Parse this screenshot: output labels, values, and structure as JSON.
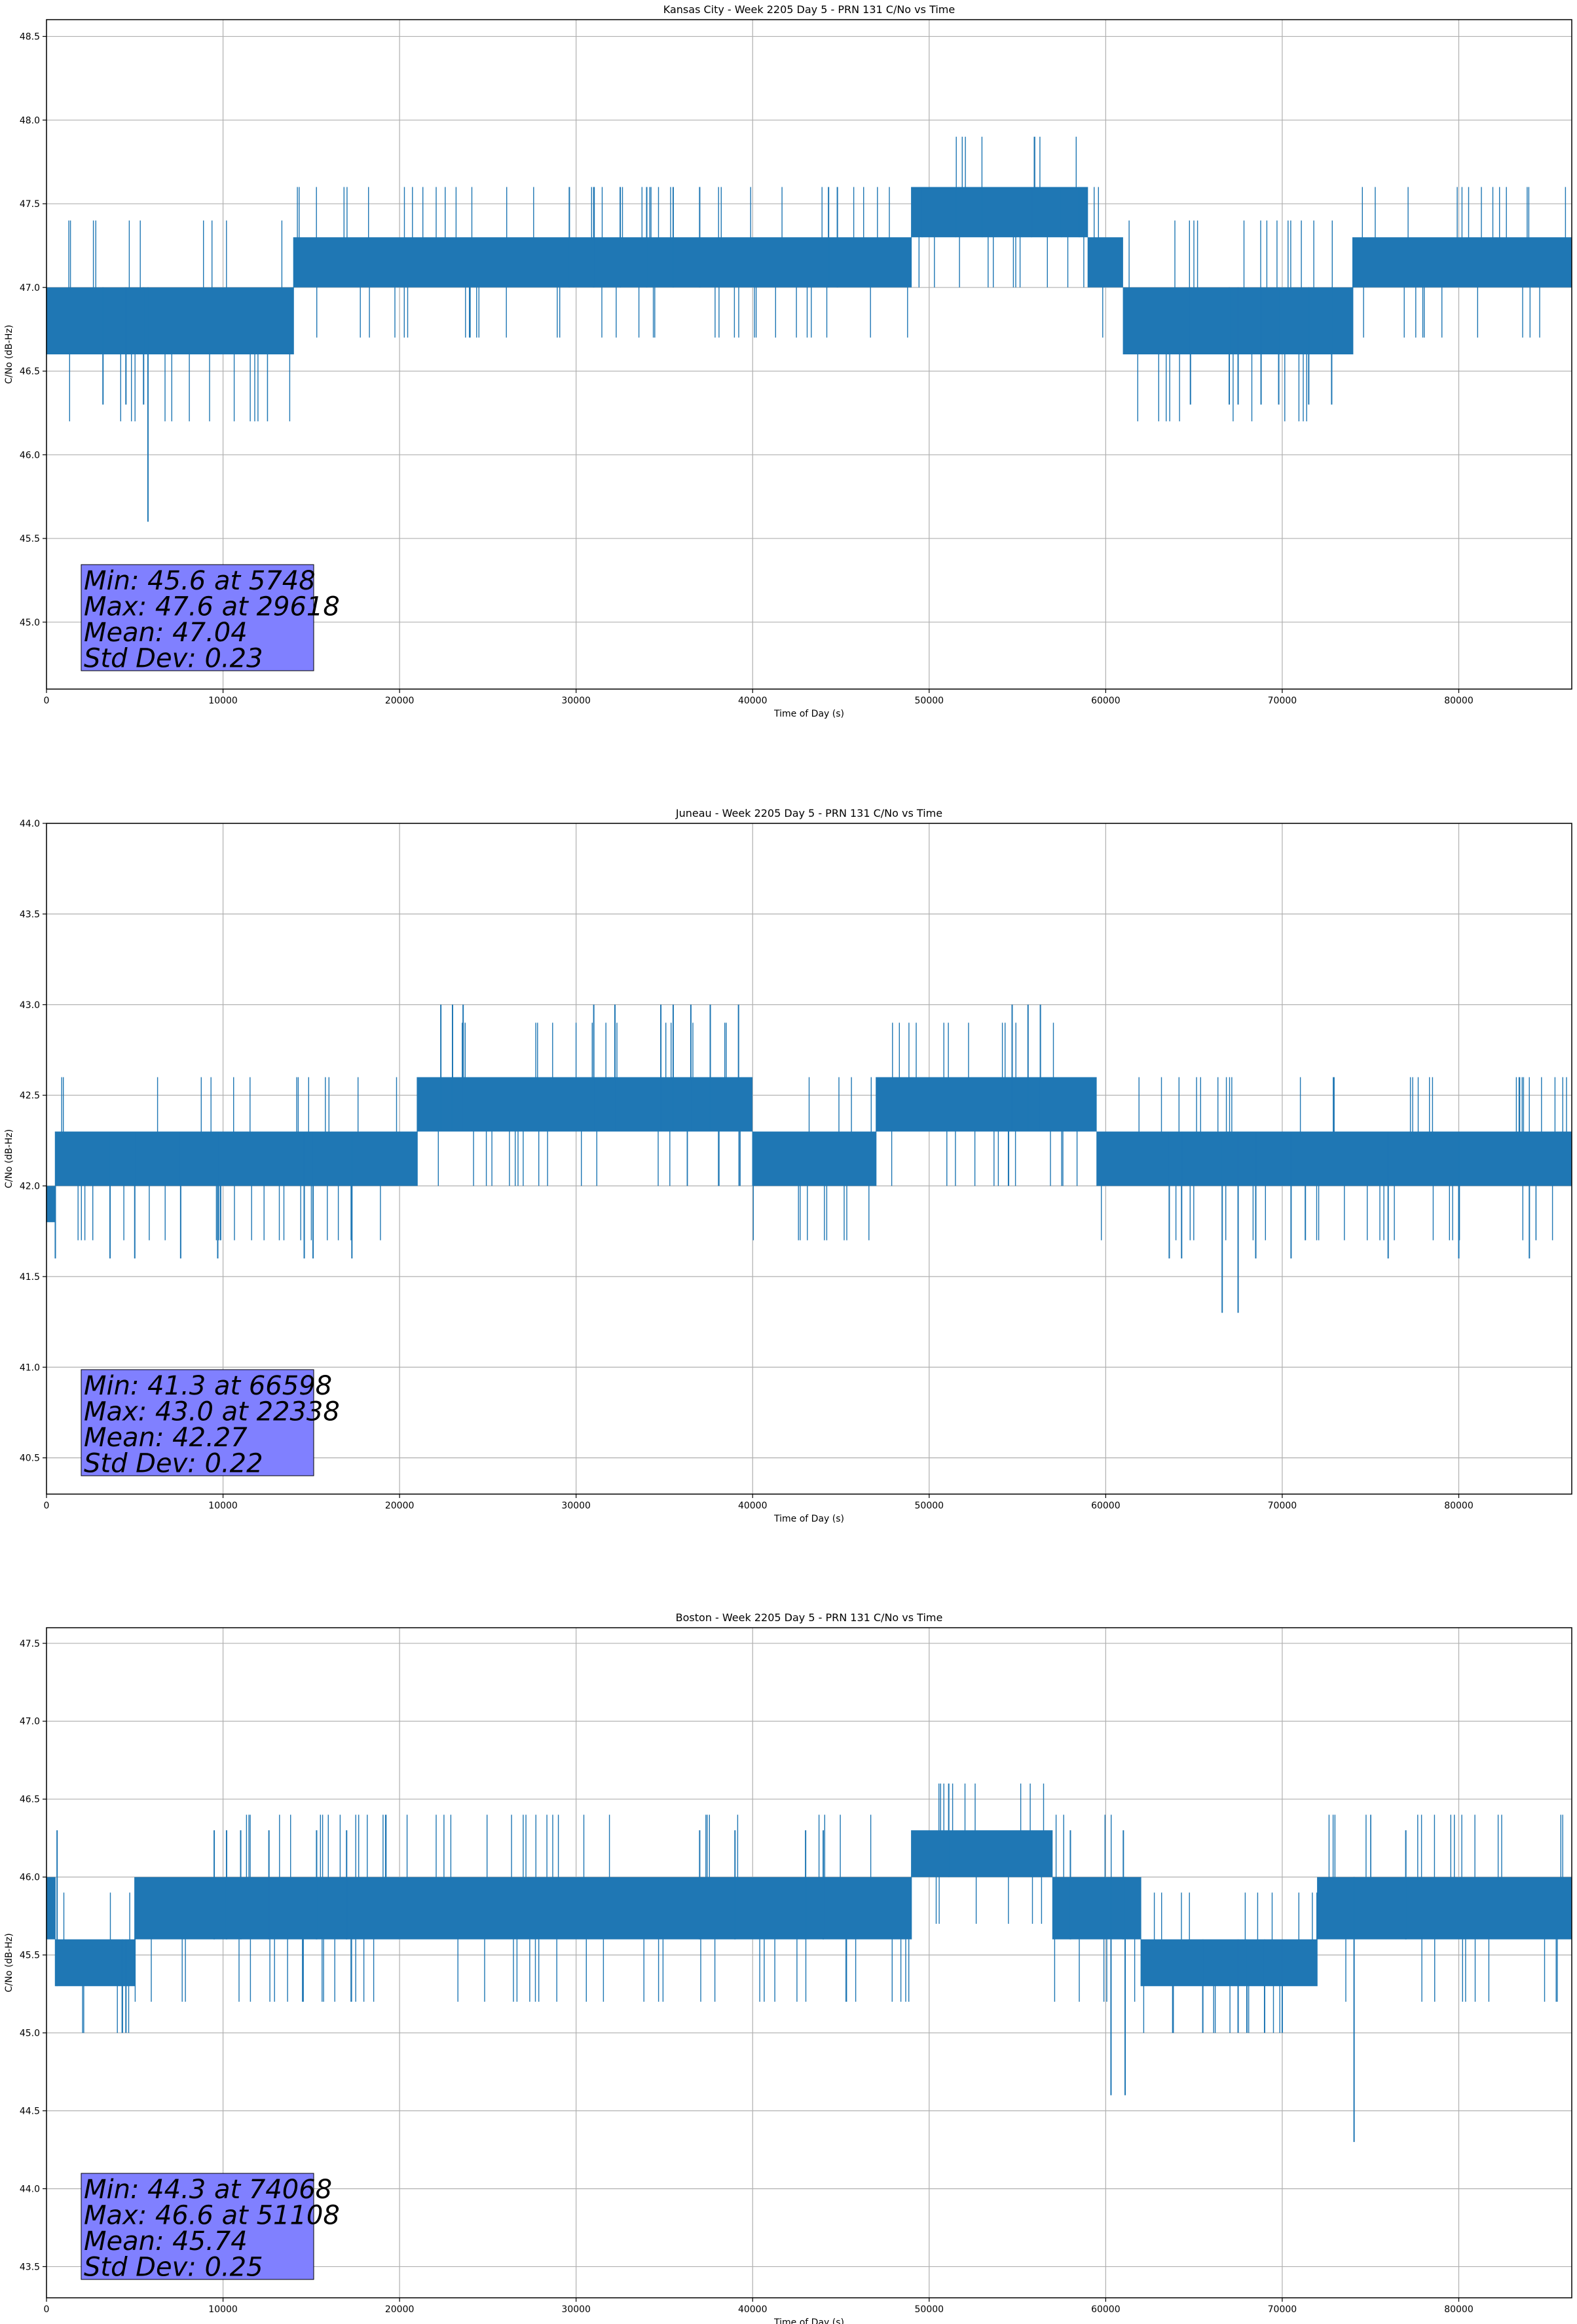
{
  "colors": {
    "line": "#1f77b4",
    "grid": "#b0b0b0",
    "stats_box": "#8080ff",
    "stats_border": "#000000"
  },
  "chart_data": [
    {
      "type": "line",
      "title": "Kansas City - Week 2205 Day 5 - PRN 131 C/No vs Time",
      "xlabel": "Time of Day (s)",
      "ylabel": "C/No (dB-Hz)",
      "xlim": [
        0,
        86400
      ],
      "ylim": [
        44.6,
        48.6
      ],
      "xticks": [
        0,
        10000,
        20000,
        30000,
        40000,
        50000,
        60000,
        70000,
        80000
      ],
      "yticks": [
        45.0,
        45.5,
        46.0,
        46.5,
        47.0,
        47.5,
        48.0,
        48.5
      ],
      "grid": true,
      "series": [
        {
          "name": "C/No",
          "segments": [
            {
              "x0": 0,
              "x1": 2000,
              "base": 47.0,
              "alt": 46.6
            },
            {
              "x0": 2000,
              "x1": 5800,
              "base": 46.6,
              "alt": 47.0,
              "spikes": [
                [
                  4200,
                  47.3
                ],
                [
                  5100,
                  47.3
                ]
              ]
            },
            {
              "x0": 5800,
              "x1": 14000,
              "base": 47.0,
              "alt": 46.6
            },
            {
              "x0": 14000,
              "x1": 29000,
              "base": 47.3,
              "alt": 47.0
            },
            {
              "x0": 29000,
              "x1": 37000,
              "base": 47.3,
              "alt": 47.0
            },
            {
              "x0": 37000,
              "x1": 46000,
              "base": 47.3,
              "alt": 47.0
            },
            {
              "x0": 46000,
              "x1": 49000,
              "base": 47.0,
              "alt": 47.3
            },
            {
              "x0": 49000,
              "x1": 59000,
              "base": 47.3,
              "alt": 47.6
            },
            {
              "x0": 59000,
              "x1": 61000,
              "base": 47.0,
              "alt": 47.3
            },
            {
              "x0": 61000,
              "x1": 74000,
              "base": 46.6,
              "alt": 47.0
            },
            {
              "x0": 74000,
              "x1": 86400,
              "base": 47.0,
              "alt": 47.3
            }
          ],
          "scattered_highs": [
            [
              29618,
              47.6
            ],
            [
              31000,
              47.6
            ],
            [
              32500,
              47.6
            ],
            [
              34000,
              47.6
            ],
            [
              35500,
              47.6
            ],
            [
              37000,
              47.6
            ],
            [
              44300,
              47.6
            ],
            [
              44800,
              47.6
            ],
            [
              49600,
              47.6
            ],
            [
              51500,
              47.6
            ],
            [
              53000,
              47.6
            ],
            [
              55800,
              47.6
            ],
            [
              57500,
              47.6
            ],
            [
              58500,
              47.6
            ]
          ],
          "scattered_lows": [
            [
              3200,
              46.3
            ],
            [
              4500,
              46.3
            ],
            [
              5500,
              46.3
            ],
            [
              5748,
              45.6
            ],
            [
              64800,
              46.3
            ],
            [
              67000,
              46.3
            ],
            [
              67500,
              46.3
            ],
            [
              68800,
              46.3
            ],
            [
              69800,
              46.3
            ],
            [
              71500,
              46.3
            ],
            [
              72800,
              46.3
            ]
          ]
        }
      ],
      "stats": [
        "Min: 45.6 at 5748",
        "Max: 47.6 at 29618",
        "Mean: 47.04",
        "Std Dev: 0.23"
      ]
    },
    {
      "type": "line",
      "title": "Juneau - Week 2205 Day 5 - PRN 131 C/No vs Time",
      "xlabel": "Time of Day (s)",
      "ylabel": "C/No (dB-Hz)",
      "xlim": [
        0,
        86400
      ],
      "ylim": [
        40.3,
        44.0
      ],
      "xticks": [
        0,
        10000,
        20000,
        30000,
        40000,
        50000,
        60000,
        70000,
        80000
      ],
      "yticks": [
        40.5,
        41.0,
        41.5,
        42.0,
        42.5,
        43.0,
        43.5,
        44.0
      ],
      "grid": true,
      "series": [
        {
          "name": "C/No",
          "segments": [
            {
              "x0": 0,
              "x1": 500,
              "base": 42.0,
              "alt": 41.8
            },
            {
              "x0": 500,
              "x1": 14500,
              "base": 42.3,
              "alt": 42.0
            },
            {
              "x0": 14500,
              "x1": 21000,
              "base": 42.0,
              "alt": 42.3
            },
            {
              "x0": 21000,
              "x1": 40000,
              "base": 42.6,
              "alt": 42.3
            },
            {
              "x0": 40000,
              "x1": 47000,
              "base": 42.3,
              "alt": 42.0
            },
            {
              "x0": 47000,
              "x1": 59500,
              "base": 42.6,
              "alt": 42.3
            },
            {
              "x0": 59500,
              "x1": 86400,
              "base": 42.3,
              "alt": 42.0
            }
          ],
          "scattered_highs": [
            [
              22338,
              43.0
            ],
            [
              23000,
              43.0
            ],
            [
              23600,
              43.0
            ],
            [
              31000,
              43.0
            ],
            [
              32200,
              43.0
            ],
            [
              34800,
              43.0
            ],
            [
              35500,
              43.0
            ],
            [
              36500,
              43.0
            ],
            [
              37600,
              43.0
            ],
            [
              39200,
              43.0
            ],
            [
              54700,
              43.0
            ],
            [
              55600,
              43.0
            ],
            [
              56300,
              43.0
            ]
          ],
          "scattered_lows": [
            [
              500,
              41.6
            ],
            [
              3600,
              41.6
            ],
            [
              5000,
              41.6
            ],
            [
              7600,
              41.6
            ],
            [
              9700,
              41.6
            ],
            [
              14600,
              41.6
            ],
            [
              15100,
              41.6
            ],
            [
              17300,
              41.6
            ],
            [
              63600,
              41.6
            ],
            [
              64300,
              41.6
            ],
            [
              66598,
              41.3
            ],
            [
              67500,
              41.3
            ],
            [
              68500,
              41.6
            ],
            [
              70500,
              41.6
            ],
            [
              76000,
              41.6
            ],
            [
              80000,
              41.6
            ],
            [
              84000,
              41.6
            ]
          ]
        }
      ],
      "stats": [
        "Min: 41.3 at 66598",
        "Max: 43.0 at 22338",
        "Mean: 42.27",
        "Std Dev: 0.22"
      ]
    },
    {
      "type": "line",
      "title": "Boston - Week 2205 Day 5 - PRN 131 C/No vs Time",
      "xlabel": "Time of Day (s)",
      "ylabel": "C/No (dB-Hz)",
      "xlim": [
        0,
        86400
      ],
      "ylim": [
        43.3,
        47.6
      ],
      "xticks": [
        0,
        10000,
        20000,
        30000,
        40000,
        50000,
        60000,
        70000,
        80000
      ],
      "yticks": [
        43.5,
        44.0,
        44.5,
        45.0,
        45.5,
        46.0,
        46.5,
        47.0,
        47.5
      ],
      "grid": true,
      "series": [
        {
          "name": "C/No",
          "segments": [
            {
              "x0": 0,
              "x1": 500,
              "base": 46.0,
              "alt": 45.6
            },
            {
              "x0": 500,
              "x1": 5000,
              "base": 45.6,
              "alt": 45.3
            },
            {
              "x0": 5000,
              "x1": 17000,
              "base": 46.0,
              "alt": 45.6
            },
            {
              "x0": 17000,
              "x1": 37000,
              "base": 46.0,
              "alt": 45.6
            },
            {
              "x0": 37000,
              "x1": 42000,
              "base": 46.0,
              "alt": 45.6
            },
            {
              "x0": 42000,
              "x1": 49000,
              "base": 46.0,
              "alt": 45.6
            },
            {
              "x0": 49000,
              "x1": 57000,
              "base": 46.3,
              "alt": 46.0
            },
            {
              "x0": 57000,
              "x1": 62000,
              "base": 46.0,
              "alt": 45.6
            },
            {
              "x0": 62000,
              "x1": 72000,
              "base": 45.6,
              "alt": 45.3
            },
            {
              "x0": 72000,
              "x1": 86400,
              "base": 46.0,
              "alt": 45.6
            }
          ],
          "scattered_highs": [
            [
              600,
              46.3
            ],
            [
              9500,
              46.3
            ],
            [
              10200,
              46.3
            ],
            [
              11000,
              46.3
            ],
            [
              12600,
              46.3
            ],
            [
              15300,
              46.3
            ],
            [
              17000,
              46.3
            ],
            [
              37000,
              46.3
            ],
            [
              39000,
              46.3
            ],
            [
              43000,
              46.3
            ],
            [
              44000,
              46.3
            ],
            [
              51108,
              46.6
            ],
            [
              58000,
              46.3
            ],
            [
              61000,
              46.3
            ],
            [
              77000,
              46.3
            ]
          ],
          "scattered_lows": [
            [
              4300,
              45.0
            ],
            [
              4500,
              45.0
            ],
            [
              60300,
              44.6
            ],
            [
              61100,
              44.6
            ],
            [
              65500,
              45.0
            ],
            [
              67500,
              45.0
            ],
            [
              68000,
              45.0
            ],
            [
              69000,
              45.0
            ],
            [
              70000,
              45.0
            ],
            [
              74068,
              44.3
            ]
          ]
        }
      ],
      "stats": [
        "Min: 44.3 at 74068",
        "Max: 46.6 at 51108",
        "Mean: 45.74",
        "Std Dev: 0.25"
      ]
    }
  ]
}
